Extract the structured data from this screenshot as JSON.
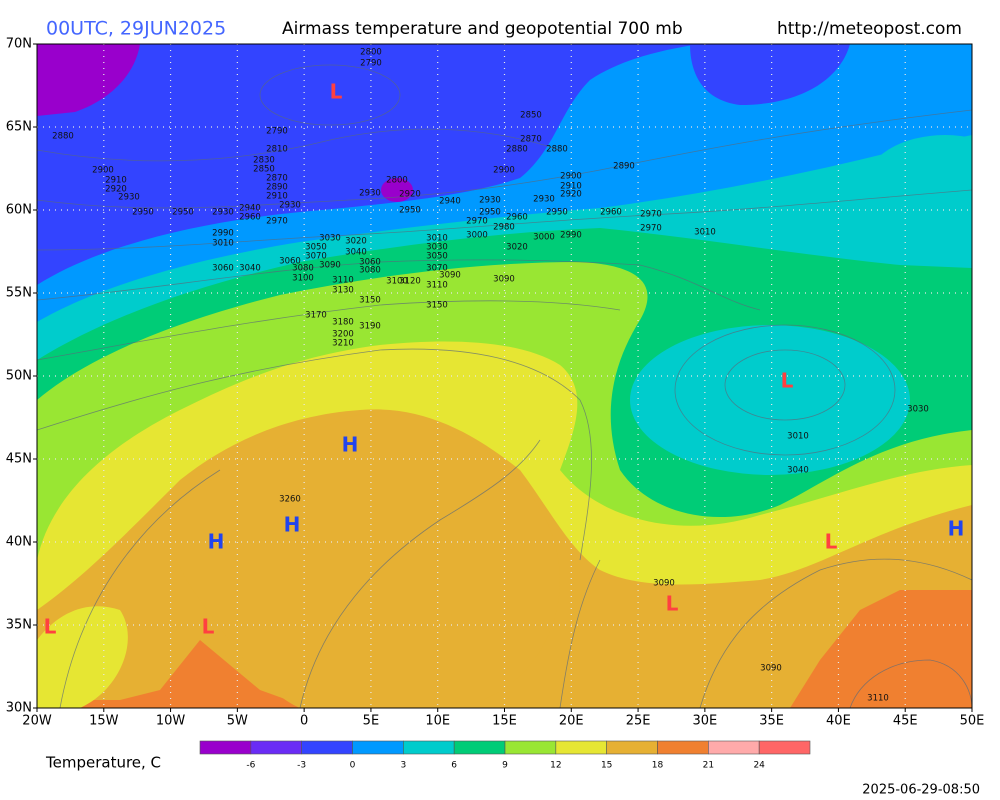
{
  "header": {
    "time": "00UTC, 29JUN2025",
    "title": "Airmass temperature and geopotential 700 mb",
    "url": "http://meteopost.com"
  },
  "lat_labels": [
    "70N",
    "65N",
    "60N",
    "55N",
    "50N",
    "45N",
    "40N",
    "35N",
    "30N"
  ],
  "lon_labels": [
    "20W",
    "15W",
    "10W",
    "5W",
    "0",
    "5E",
    "10E",
    "15E",
    "20E",
    "25E",
    "30E",
    "35E",
    "40E",
    "45E",
    "50E"
  ],
  "colorbar": {
    "label": "Temperature, C",
    "ticks": [
      "-6",
      "-3",
      "0",
      "3",
      "6",
      "9",
      "12",
      "15",
      "18",
      "21",
      "24"
    ],
    "colors": [
      "#9900cc",
      "#6a2cf5",
      "#3344ff",
      "#0099ff",
      "#00cccc",
      "#00cc77",
      "#99e633",
      "#e6e633",
      "#e6b033",
      "#f08030",
      "#ffaaaa",
      "#ff6666"
    ]
  },
  "pressure_centers": [
    "L",
    "L",
    "H",
    "H",
    "H",
    "L",
    "L",
    "L",
    "L",
    "H"
  ],
  "contour_labels": [
    "2800",
    "2790",
    "2880",
    "2790",
    "2810",
    "2830",
    "2850",
    "2870",
    "2890",
    "2910",
    "2930",
    "2900",
    "2910",
    "2920",
    "2930",
    "2950",
    "2950",
    "2930",
    "2940",
    "2960",
    "2970",
    "2990",
    "3010",
    "2800",
    "2920",
    "2930",
    "2950",
    "2850",
    "2870",
    "2880",
    "2880",
    "2890",
    "2900",
    "2910",
    "2900",
    "2940",
    "2930",
    "2950",
    "2970",
    "2980",
    "3000",
    "2960",
    "2990",
    "3000",
    "2920",
    "2930",
    "2950",
    "2960",
    "2970",
    "2970",
    "3010",
    "3030",
    "3050",
    "3070",
    "3090",
    "3110",
    "3130",
    "3150",
    "3170",
    "3180",
    "3200",
    "3210",
    "3190",
    "3060",
    "3080",
    "3100",
    "3020",
    "3040",
    "3060",
    "3080",
    "3100",
    "3120",
    "3010",
    "3030",
    "3050",
    "3070",
    "3090",
    "3110",
    "3150",
    "3060",
    "3040",
    "3020",
    "3090",
    "3260",
    "3030",
    "3010",
    "3040",
    "3090",
    "3090",
    "3110"
  ],
  "timestamp": "2025-06-29-08:50"
}
